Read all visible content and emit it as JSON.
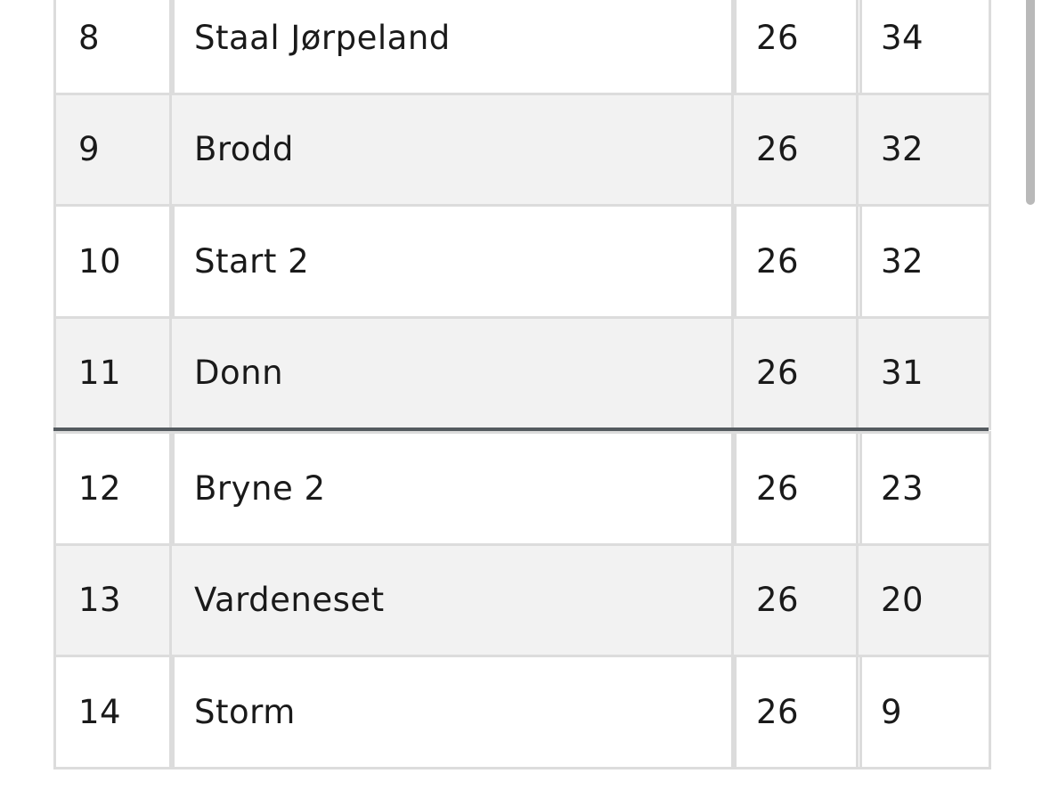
{
  "table": {
    "rows": [
      [
        8,
        "Staal Jørpeland",
        26,
        34
      ],
      [
        9,
        "Brodd",
        26,
        32
      ],
      [
        10,
        "Start 2",
        26,
        32
      ],
      [
        11,
        "Donn",
        26,
        31
      ],
      [
        12,
        "Bryne 2",
        26,
        23
      ],
      [
        13,
        "Vardeneset",
        26,
        20
      ],
      [
        14,
        "Storm",
        26,
        9
      ]
    ]
  }
}
